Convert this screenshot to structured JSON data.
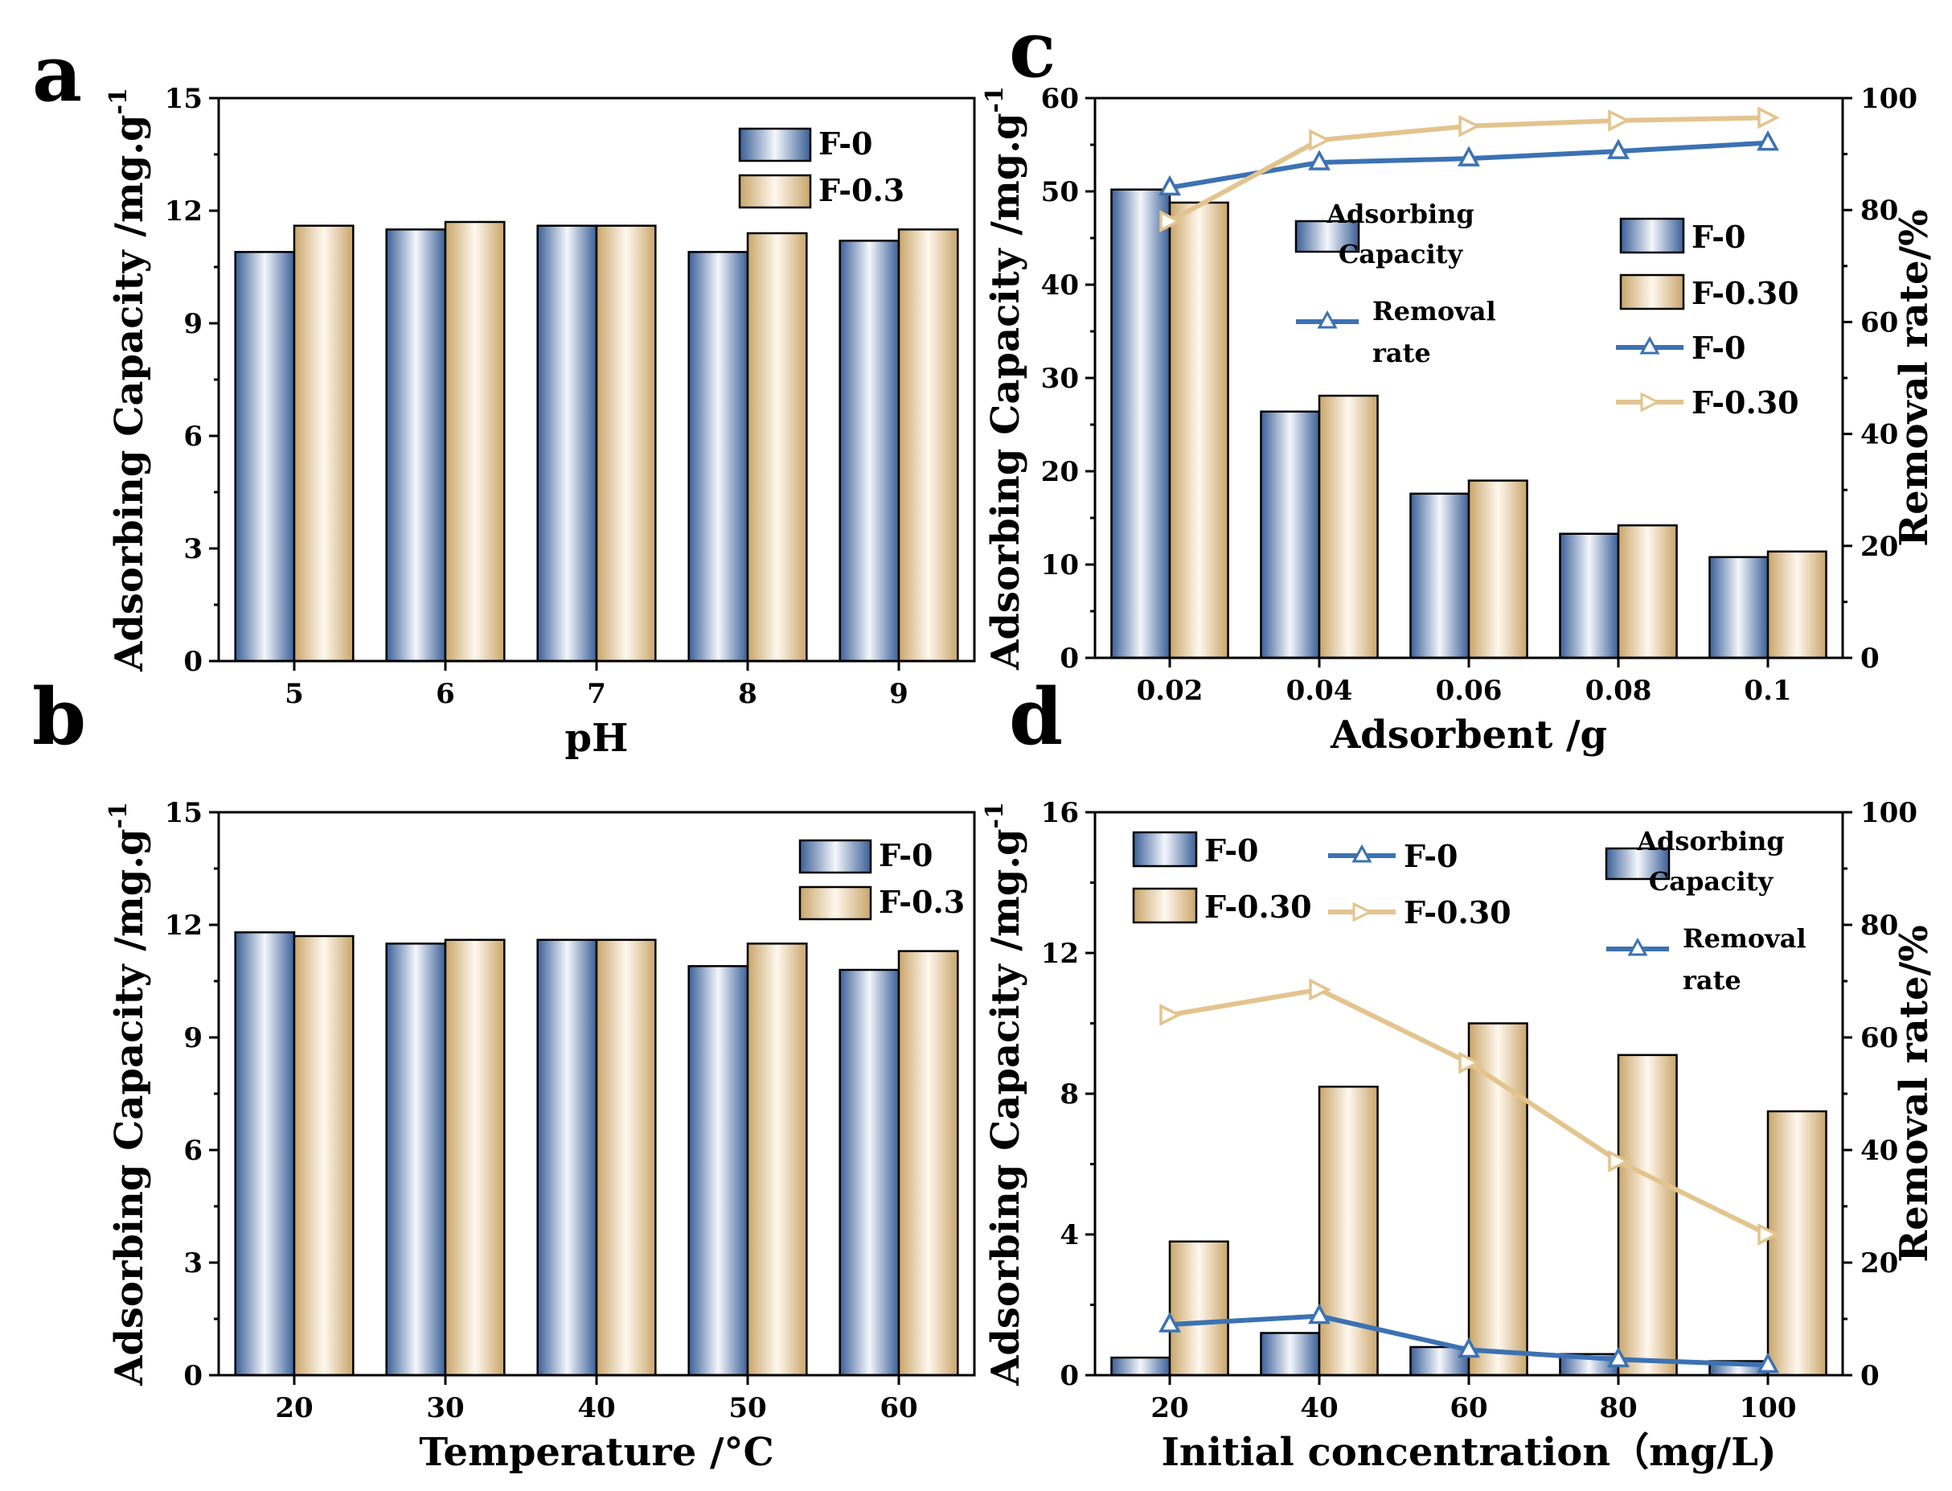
{
  "colors": {
    "f0_dark": "#3A5F97",
    "f0_light": "#F4F7FC",
    "f03_dark": "#C9A56A",
    "f03_light": "#FFF8EE",
    "line_f0": "#3C72B2",
    "line_f03": "#E3C48E"
  },
  "chart_data": [
    {
      "panel": "a",
      "type": "bar",
      "xlabel": "pH",
      "ylabel": "Adsorbing Capacity /mg.g",
      "ylabel_sup": "-1",
      "categories": [
        "5",
        "6",
        "7",
        "8",
        "9"
      ],
      "ylim": [
        0,
        15
      ],
      "yticks": [
        "0",
        "3",
        "6",
        "9",
        "12",
        "15"
      ],
      "series": [
        {
          "name": "F-0",
          "values": [
            10.9,
            11.5,
            11.6,
            10.9,
            11.2
          ]
        },
        {
          "name": "F-0.3",
          "values": [
            11.6,
            11.7,
            11.6,
            11.4,
            11.5
          ]
        }
      ],
      "legend": [
        "F-0",
        "F-0.3"
      ]
    },
    {
      "panel": "b",
      "type": "bar",
      "xlabel": "Temperature /°C",
      "ylabel": "Adsorbing Capacity /mg.g",
      "ylabel_sup": "-1",
      "categories": [
        "20",
        "30",
        "40",
        "50",
        "60"
      ],
      "ylim": [
        0,
        15
      ],
      "yticks": [
        "0",
        "3",
        "6",
        "9",
        "12",
        "15"
      ],
      "series": [
        {
          "name": "F-0",
          "values": [
            11.8,
            11.5,
            11.6,
            10.9,
            10.8
          ]
        },
        {
          "name": "F-0.3",
          "values": [
            11.7,
            11.6,
            11.6,
            11.5,
            11.3
          ]
        }
      ],
      "legend": [
        "F-0",
        "F-0.3"
      ]
    },
    {
      "panel": "c",
      "type": "bar",
      "xlabel": "Adsorbent /g",
      "ylabel": "Adsorbing Capacity /mg.g",
      "ylabel_sup": "-1",
      "y2label": "Removal rate/%",
      "categories": [
        "0.02",
        "0.04",
        "0.06",
        "0.08",
        "0.1"
      ],
      "ylim": [
        0,
        60
      ],
      "yticks": [
        "0",
        "10",
        "20",
        "30",
        "40",
        "50",
        "60"
      ],
      "y2lim": [
        0,
        100
      ],
      "y2ticks": [
        "0",
        "20",
        "40",
        "60",
        "80",
        "100"
      ],
      "series": [
        {
          "name": "F-0",
          "values": [
            50.2,
            26.4,
            17.6,
            13.3,
            10.8
          ]
        },
        {
          "name": "F-0.30",
          "values": [
            48.8,
            28.1,
            19.0,
            14.2,
            11.4
          ]
        }
      ],
      "line_series": [
        {
          "name": "F-0",
          "values": [
            84.0,
            88.5,
            89.2,
            90.5,
            92.0
          ]
        },
        {
          "name": "F-0.30",
          "values": [
            78.0,
            92.5,
            95.0,
            96.0,
            96.5
          ]
        }
      ],
      "legend_labels": {
        "capacity_line1": "Adsorbing",
        "capacity_line2": "Capacity",
        "removal_line1": "Removal",
        "removal_line2": "rate",
        "bar_f0": "F-0",
        "bar_f03": "F-0.30",
        "line_f0": "F-0",
        "line_f03": "F-0.30"
      }
    },
    {
      "panel": "d",
      "type": "bar",
      "xlabel": "Initial concentration（mg/L)",
      "ylabel": "Adsorbing Capacity /mg.g",
      "ylabel_sup": "-1",
      "y2label": "Removal rate/%",
      "categories": [
        "20",
        "40",
        "60",
        "80",
        "100"
      ],
      "ylim": [
        0,
        16
      ],
      "yticks": [
        "0",
        "4",
        "8",
        "12",
        "16"
      ],
      "y2lim": [
        0,
        100
      ],
      "y2ticks": [
        "0",
        "20",
        "40",
        "60",
        "80",
        "100"
      ],
      "series": [
        {
          "name": "F-0",
          "values": [
            0.5,
            1.2,
            0.8,
            0.6,
            0.4
          ]
        },
        {
          "name": "F-0.30",
          "values": [
            3.8,
            8.2,
            10.0,
            9.1,
            7.5
          ]
        }
      ],
      "line_series": [
        {
          "name": "F-0",
          "values": [
            9.0,
            10.5,
            4.5,
            2.8,
            1.8
          ]
        },
        {
          "name": "F-0.30",
          "values": [
            64.0,
            68.5,
            55.5,
            38.0,
            25.0
          ]
        }
      ],
      "legend_labels": {
        "capacity_line1": "Adsorbing",
        "capacity_line2": "Capacity",
        "removal_line1": "Removal",
        "removal_line2": "rate",
        "bar_f0": "F-0",
        "bar_f03": "F-0.30",
        "line_f0": "F-0",
        "line_f03": "F-0.30"
      }
    }
  ]
}
